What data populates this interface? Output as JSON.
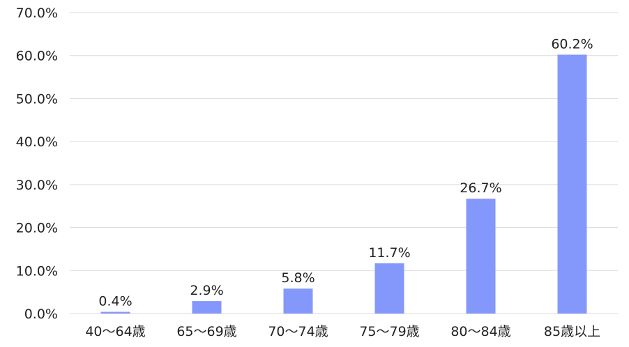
{
  "chart_data": {
    "type": "bar",
    "categories": [
      "40〜64歳",
      "65〜69歳",
      "70〜74歳",
      "75〜79歳",
      "80〜84歳",
      "85歳以上"
    ],
    "values": [
      0.4,
      2.9,
      5.8,
      11.7,
      26.7,
      60.2
    ],
    "value_labels": [
      "0.4%",
      "2.9%",
      "5.8%",
      "11.7%",
      "26.7%",
      "60.2%"
    ],
    "y_ticks": [
      "0.0%",
      "10.0%",
      "20.0%",
      "30.0%",
      "40.0%",
      "50.0%",
      "60.0%",
      "70.0%"
    ],
    "ylim": [
      0,
      70
    ],
    "grid": true,
    "bar_color": "#8497fb",
    "title": "",
    "xlabel": "",
    "ylabel": ""
  }
}
